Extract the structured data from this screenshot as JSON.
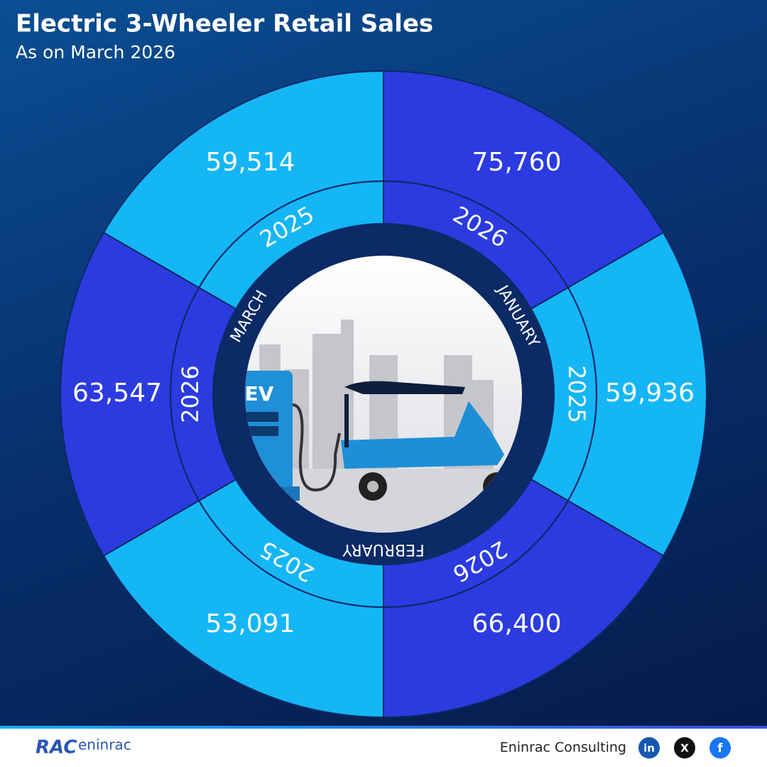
{
  "header": {
    "title": "Electric 3-Wheeler Retail Sales",
    "subtitle": "As on March 2026"
  },
  "chart_data": {
    "type": "radial",
    "months": [
      "JANUARY",
      "FEBRUARY",
      "MARCH"
    ],
    "series": [
      {
        "name": "2026",
        "color": "#2b3be0",
        "values": [
          75760,
          66400,
          63547
        ],
        "value_labels": [
          "75,760",
          "66,400",
          "63,547"
        ]
      },
      {
        "name": "2025",
        "color": "#14b6f6",
        "values": [
          59936,
          53091,
          59514
        ],
        "value_labels": [
          "59,936",
          "53,091",
          "59,514"
        ]
      }
    ]
  },
  "footer": {
    "logo_mark": "RAC",
    "logo_name": "eninrac",
    "brand": "Eninrac Consulting",
    "social": [
      "in",
      "X",
      "f"
    ]
  }
}
